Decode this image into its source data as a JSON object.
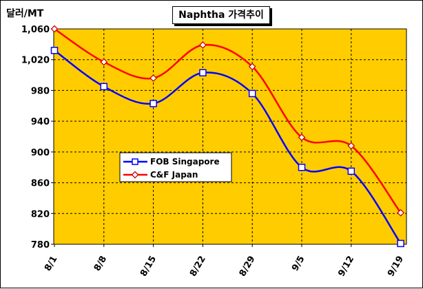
{
  "chart_data": {
    "type": "line",
    "title": "Naphtha 가격추이",
    "ylabel": "달러/MT",
    "xlabel": "",
    "categories": [
      "8/1",
      "8/8",
      "8/15",
      "8/22",
      "8/29",
      "9/5",
      "9/12",
      "9/19"
    ],
    "ylim": [
      780,
      1060
    ],
    "yticks": [
      "1,060",
      "1,020",
      "980",
      "940",
      "900",
      "860",
      "820",
      "780"
    ],
    "ytick_values": [
      1060,
      1020,
      980,
      940,
      900,
      860,
      820,
      780
    ],
    "grid": true,
    "plot_background": "#ffcc00",
    "legend_position": "center-left",
    "series": [
      {
        "name": "FOB Singapore",
        "color": "#0000ff",
        "marker": "square",
        "values": [
          1032,
          985,
          963,
          1003,
          976,
          880,
          875,
          781
        ]
      },
      {
        "name": "C&F Japan",
        "color": "#ff0000",
        "marker": "diamond",
        "values": [
          1060,
          1017,
          996,
          1039,
          1011,
          919,
          908,
          821
        ]
      }
    ]
  }
}
